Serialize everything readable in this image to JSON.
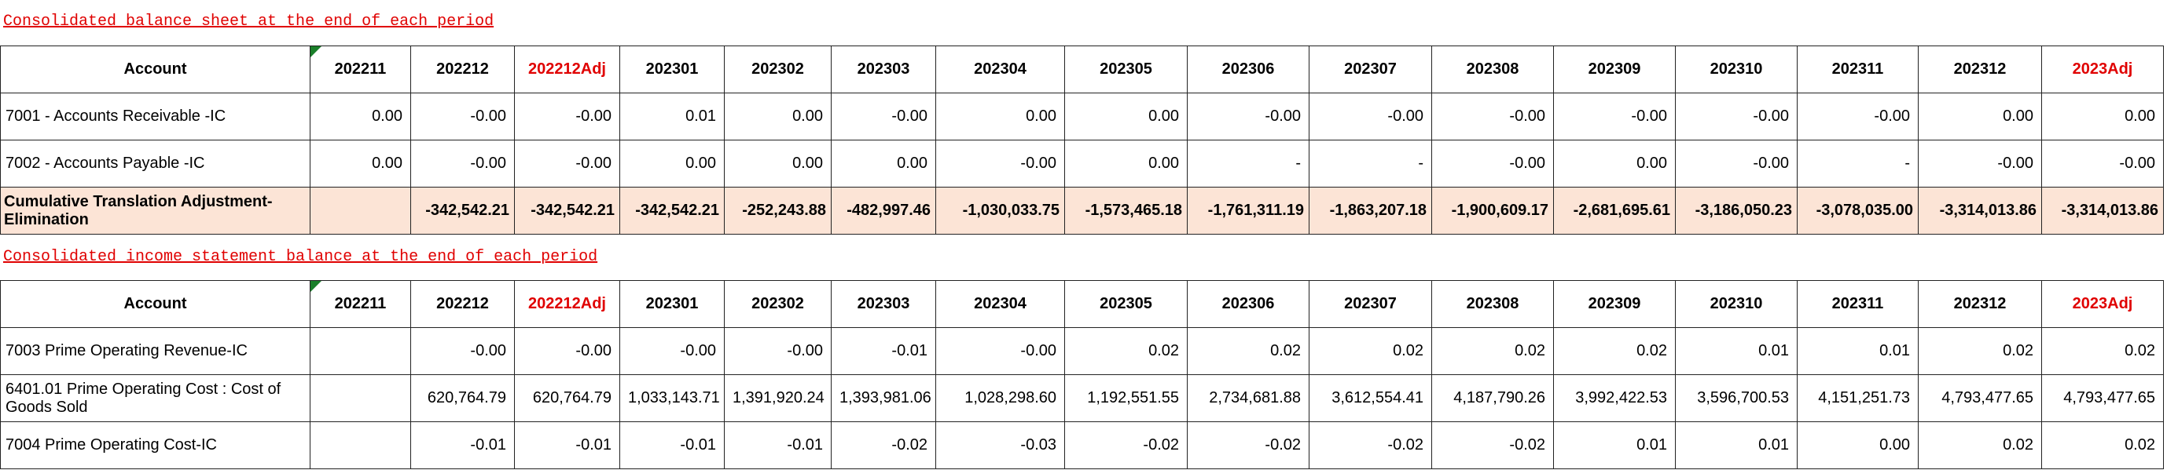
{
  "sections": [
    {
      "title": "Consolidated balance sheet at the end of each period",
      "table": {
        "header": [
          "Account",
          "202211",
          "202212",
          "202212Adj",
          "202301",
          "202302",
          "202303",
          "202304",
          "202305",
          "202306",
          "202307",
          "202308",
          "202309",
          "202310",
          "202311",
          "202312",
          "2023Adj"
        ],
        "rows": [
          [
            "7001 - Accounts Receivable -IC",
            "0.00",
            "-0.00",
            "-0.00",
            "0.01",
            "0.00",
            "-0.00",
            "0.00",
            "0.00",
            "-0.00",
            "-0.00",
            "-0.00",
            "-0.00",
            "-0.00",
            "-0.00",
            "0.00",
            "0.00"
          ],
          [
            "7002 - Accounts Payable -IC",
            "0.00",
            "-0.00",
            "-0.00",
            "0.00",
            "0.00",
            "0.00",
            "-0.00",
            "0.00",
            "-",
            "-",
            "-0.00",
            "0.00",
            "-0.00",
            "-",
            "-0.00",
            "-0.00"
          ],
          [
            "Cumulative Translation Adjustment-Elimination",
            null,
            "-342,542.21",
            "-342,542.21",
            "-342,542.21",
            "-252,243.88",
            "-482,997.46",
            "-1,030,033.75",
            "-1,573,465.18",
            "-1,761,311.19",
            "-1,863,207.18",
            "-1,900,609.17",
            "-2,681,695.61",
            "-3,186,050.23",
            "-3,078,035.00",
            "-3,314,013.86",
            "-3,314,013.86"
          ]
        ]
      }
    },
    {
      "title": "Consolidated income statement balance at the end of each period",
      "table": {
        "header": [
          "Account",
          "202211",
          "202212",
          "202212Adj",
          "202301",
          "202302",
          "202303",
          "202304",
          "202305",
          "202306",
          "202307",
          "202308",
          "202309",
          "202310",
          "202311",
          "202312",
          "2023Adj"
        ],
        "rows": [
          [
            "7003 Prime Operating Revenue-IC",
            null,
            "-0.00",
            "-0.00",
            "-0.00",
            "-0.00",
            "-0.01",
            "-0.00",
            "0.02",
            "0.02",
            "0.02",
            "0.02",
            "0.02",
            "0.01",
            "0.01",
            "0.02",
            "0.02"
          ],
          [
            "6401.01 Prime Operating Cost : Cost of Goods Sold",
            null,
            "620,764.79",
            "620,764.79",
            "1,033,143.71",
            "1,391,920.24",
            "1,393,981.06",
            "1,028,298.60",
            "1,192,551.55",
            "2,734,681.88",
            "3,612,554.41",
            "4,187,790.26",
            "3,992,422.53",
            "3,596,700.53",
            "4,151,251.73",
            "4,793,477.65",
            "4,793,477.65"
          ],
          [
            "7004 Prime Operating Cost-IC",
            null,
            "-0.01",
            "-0.01",
            "-0.01",
            "-0.01",
            "-0.02",
            "-0.03",
            "-0.02",
            "-0.02",
            "-0.02",
            "-0.02",
            "0.01",
            "0.01",
            "0.00",
            "0.02",
            "0.02"
          ]
        ]
      }
    }
  ]
}
